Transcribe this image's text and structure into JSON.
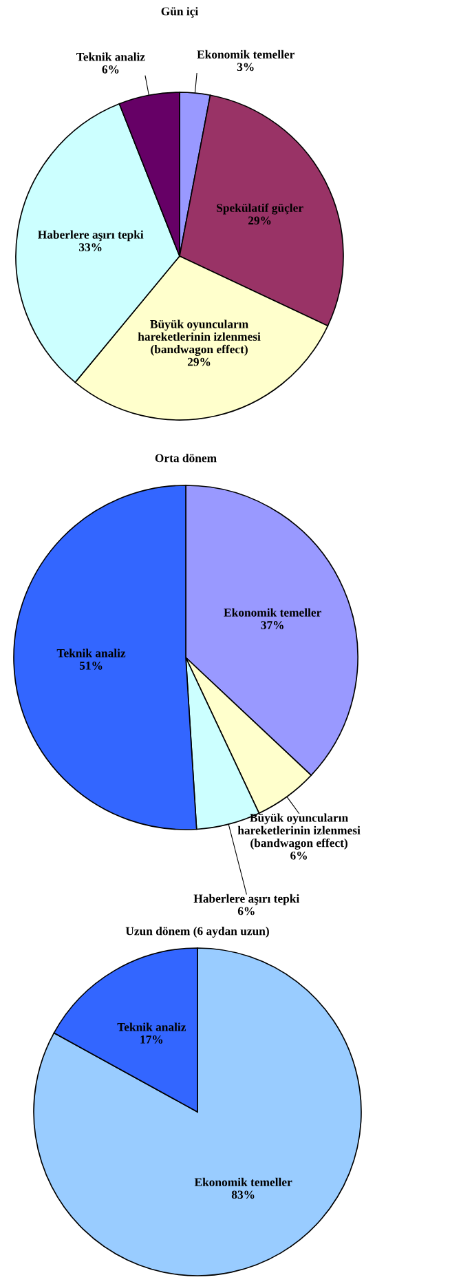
{
  "chart_data": [
    {
      "type": "pie",
      "title": "Gün içi",
      "categories": [
        "Ekonomik temeller",
        "Spekülatif güçler",
        "Büyük oyuncuların\nhareketlerinin izlenmesi\n(bandwagon effect)",
        "Haberlere aşırı tepki",
        "Teknik analiz"
      ],
      "values": [
        3,
        29,
        29,
        33,
        6
      ],
      "value_labels": [
        "3%",
        "29%",
        "29%",
        "33%",
        "6%"
      ],
      "colors": [
        "#9999ff",
        "#993366",
        "#ffffcc",
        "#ccffff",
        "#660066"
      ]
    },
    {
      "type": "pie",
      "title": "Orta dönem",
      "categories": [
        "Ekonomik temeller",
        "Büyük oyuncuların\nhareketlerinin izlenmesi\n(bandwagon effect)",
        "Haberlere aşırı tepki",
        "Teknik analiz"
      ],
      "values": [
        37,
        6,
        6,
        51
      ],
      "value_labels": [
        "37%",
        "6%",
        "6%",
        "51%"
      ],
      "colors": [
        "#9999ff",
        "#ffffcc",
        "#ccffff",
        "#3366ff"
      ]
    },
    {
      "type": "pie",
      "title": "Uzun dönem (6 aydan uzun)",
      "categories": [
        "Ekonomik temeller",
        "Teknik analiz"
      ],
      "values": [
        83,
        17
      ],
      "value_labels": [
        "83%",
        "17%"
      ],
      "colors": [
        "#99ccff",
        "#3366ff"
      ]
    }
  ]
}
